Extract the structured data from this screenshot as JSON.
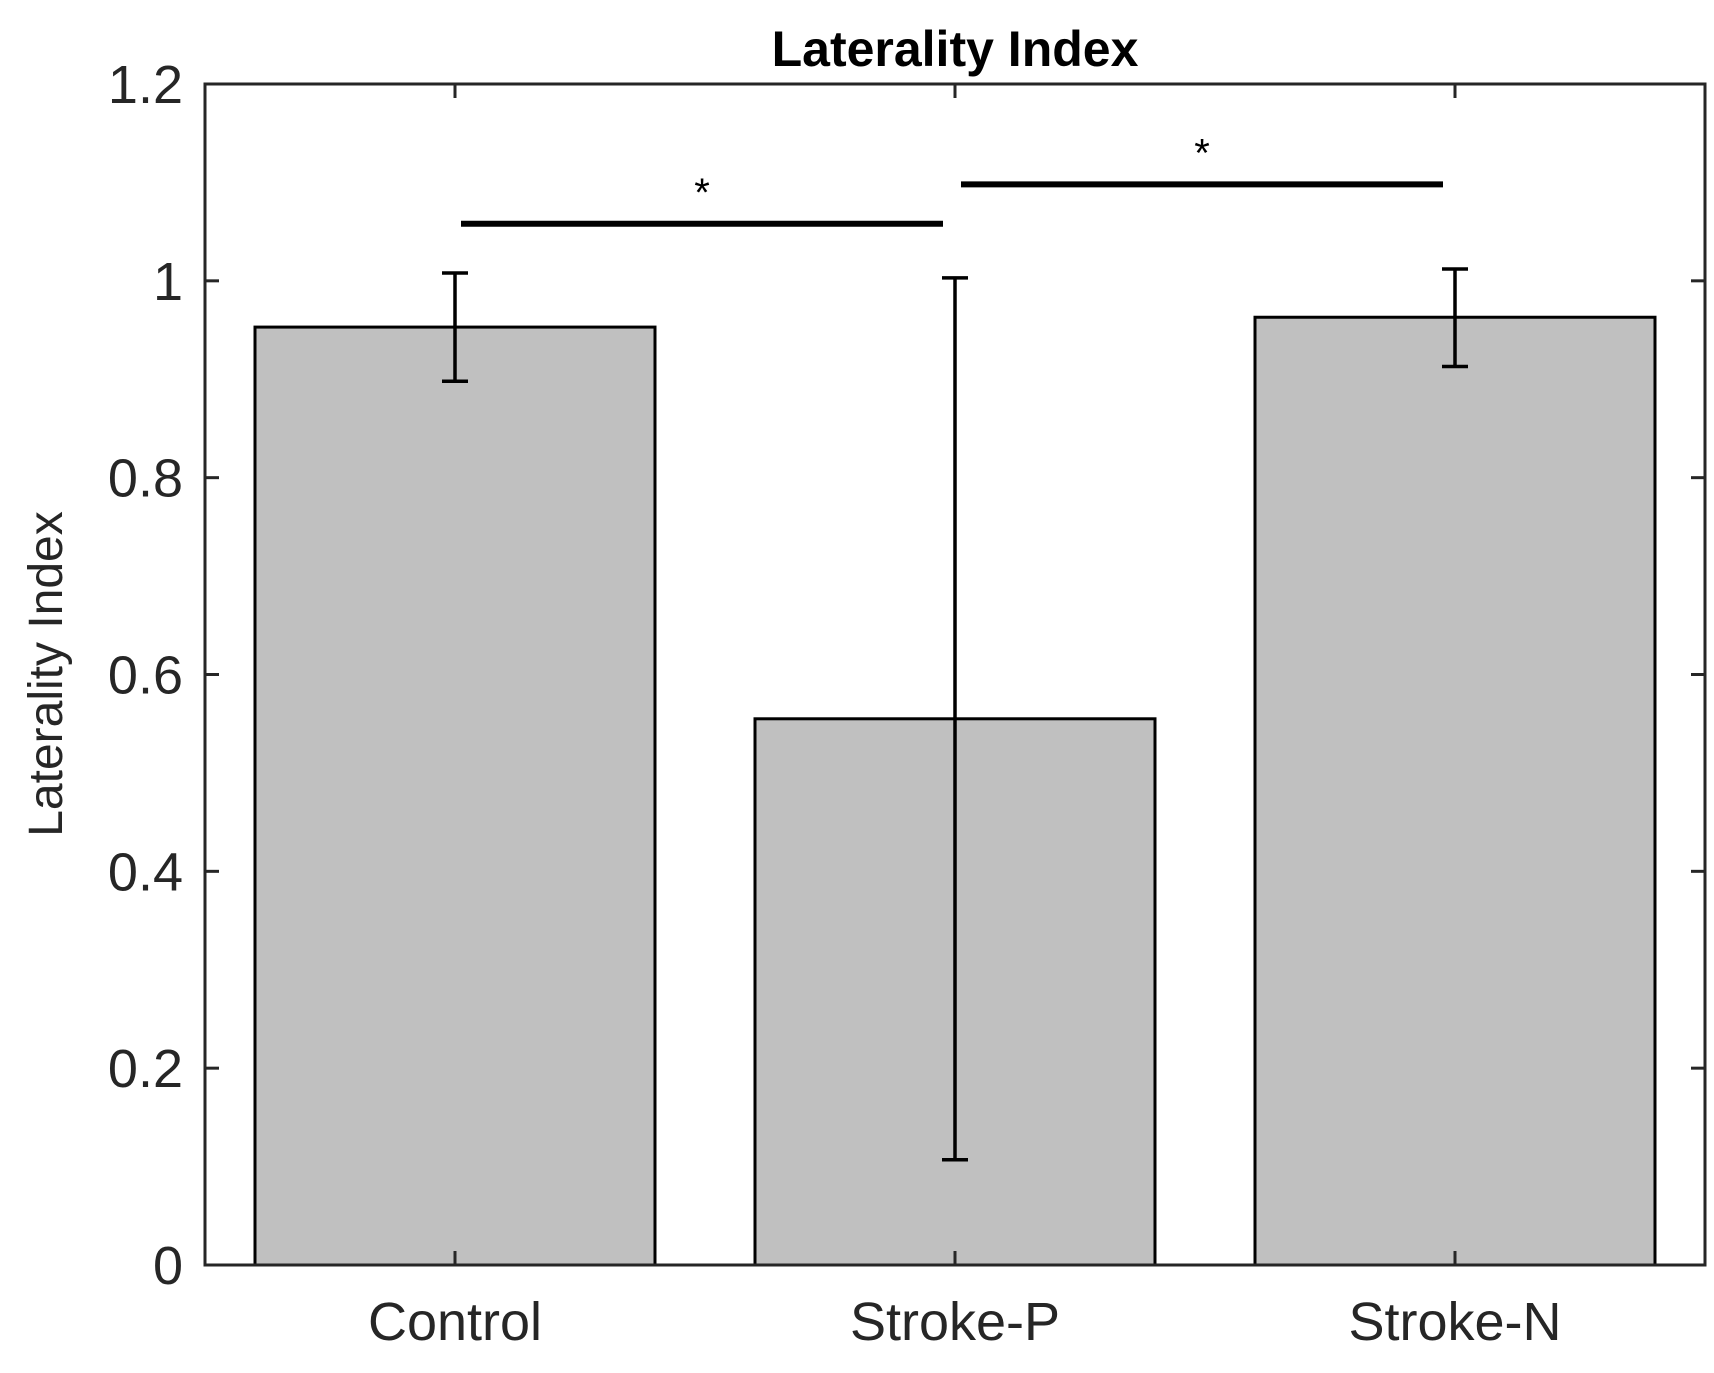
{
  "chart_data": {
    "type": "bar",
    "title": "Laterality Index",
    "xlabel": "",
    "ylabel": "Laterality Index",
    "ylim": [
      0,
      1.2
    ],
    "yticks": [
      0,
      0.2,
      0.4,
      0.6,
      0.8,
      1,
      1.2
    ],
    "ytick_labels": [
      "0",
      "0.2",
      "0.4",
      "0.6",
      "0.8",
      "1",
      "1.2"
    ],
    "categories": [
      "Control",
      "Stroke-P",
      "Stroke-N"
    ],
    "values": [
      0.953,
      0.555,
      0.963
    ],
    "error_bars": [
      {
        "lower": 0.898,
        "upper": 1.008
      },
      {
        "lower": 0.107,
        "upper": 1.003
      },
      {
        "lower": 0.913,
        "upper": 1.012
      }
    ],
    "significance": [
      {
        "from": "Control",
        "to": "Stroke-P",
        "label": "*",
        "y": 1.058
      },
      {
        "from": "Stroke-P",
        "to": "Stroke-N",
        "label": "*",
        "y": 1.098
      }
    ],
    "colors": {
      "bar": "#c0c0c0",
      "edge": "#000000",
      "axis": "#262626"
    },
    "grid": false,
    "legend": "none"
  }
}
